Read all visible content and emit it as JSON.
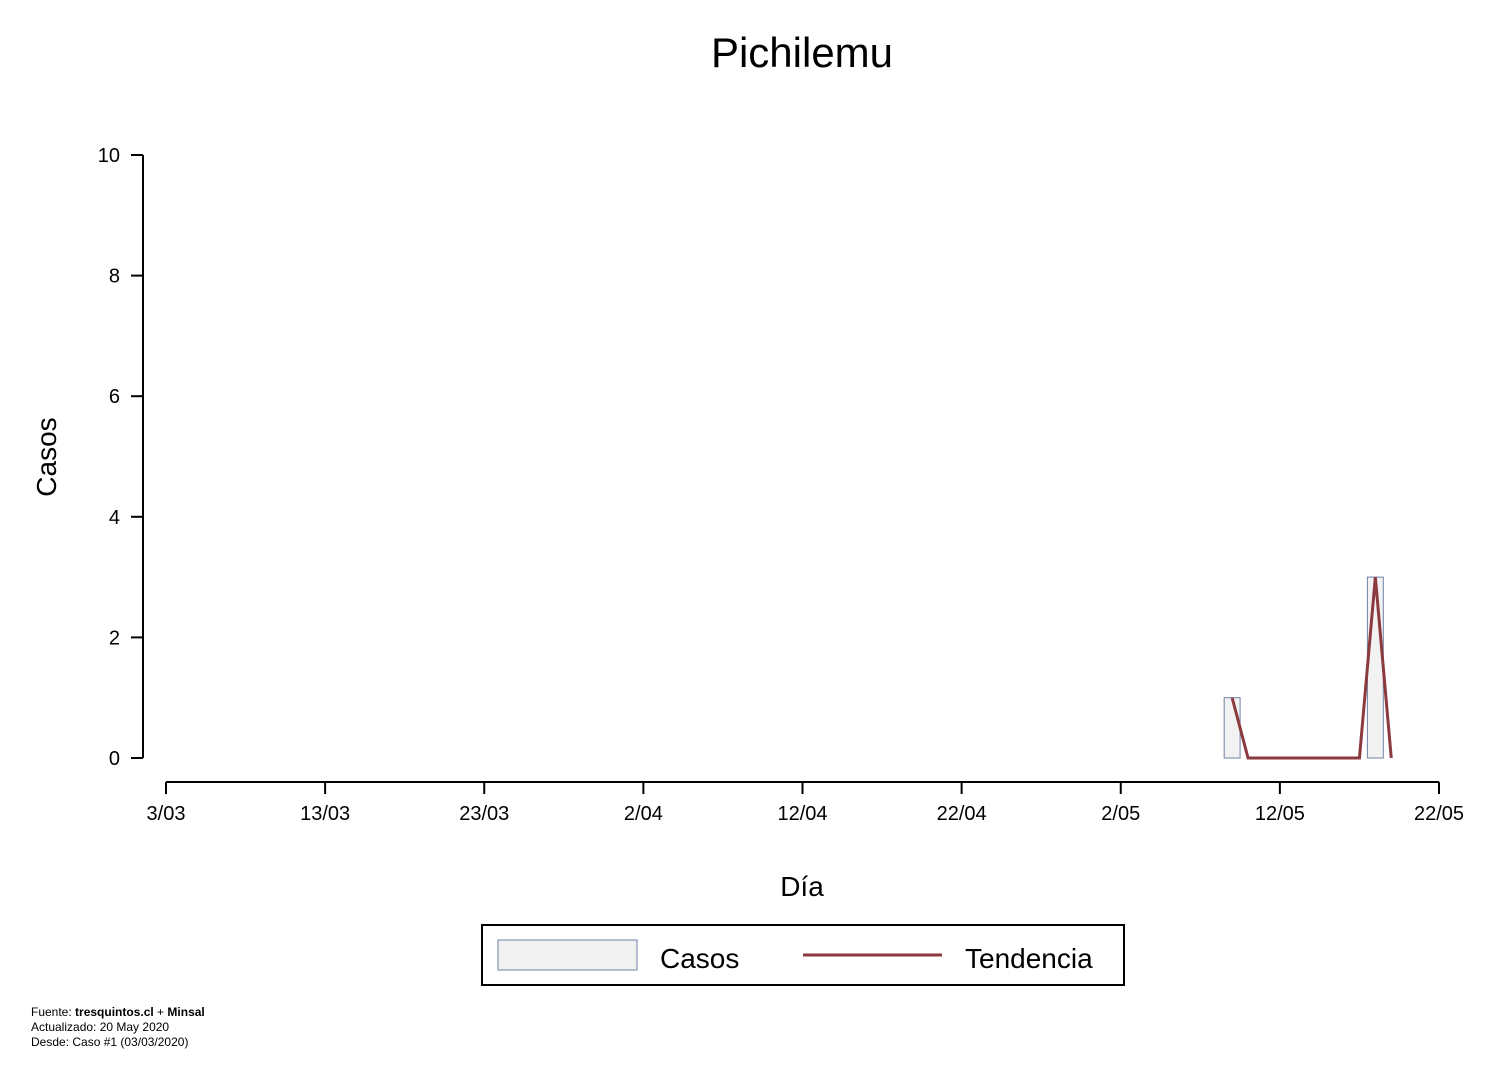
{
  "chart_data": {
    "type": "bar",
    "title": "Pichilemu",
    "xlabel": "Día",
    "ylabel": "Casos",
    "ylim": [
      0,
      10
    ],
    "yticks": [
      0,
      2,
      4,
      6,
      8,
      10
    ],
    "x_ticks": [
      {
        "day": 0,
        "label": "3/03"
      },
      {
        "day": 10,
        "label": "13/03"
      },
      {
        "day": 20,
        "label": "23/03"
      },
      {
        "day": 30,
        "label": "2/04"
      },
      {
        "day": 40,
        "label": "12/04"
      },
      {
        "day": 50,
        "label": "22/04"
      },
      {
        "day": 60,
        "label": "2/05"
      },
      {
        "day": 70,
        "label": "12/05"
      },
      {
        "day": 80,
        "label": "22/05"
      }
    ],
    "xlim_days": [
      0,
      80
    ],
    "series": [
      {
        "name": "Casos",
        "kind": "bar",
        "points": [
          {
            "day": 67,
            "value": 1
          },
          {
            "day": 76,
            "value": 3
          }
        ]
      },
      {
        "name": "Tendencia",
        "kind": "line",
        "points": [
          {
            "day": 67,
            "value": 1
          },
          {
            "day": 68,
            "value": 0
          },
          {
            "day": 69,
            "value": 0
          },
          {
            "day": 70,
            "value": 0
          },
          {
            "day": 71,
            "value": 0
          },
          {
            "day": 72,
            "value": 0
          },
          {
            "day": 73,
            "value": 0
          },
          {
            "day": 74,
            "value": 0
          },
          {
            "day": 75,
            "value": 0
          },
          {
            "day": 76,
            "value": 3
          },
          {
            "day": 77,
            "value": 0
          }
        ]
      }
    ],
    "legend": {
      "position": "bottom-center",
      "entries": [
        "Casos",
        "Tendencia"
      ]
    },
    "colors": {
      "bar_fill": "#f2f2f2",
      "bar_stroke": "#6f82a6",
      "line": "#8b3a3f"
    }
  },
  "footer": {
    "source_prefix": "Fuente: ",
    "source_a": "tresquintos.cl",
    "source_joiner": " + ",
    "source_b": "Minsal",
    "updated": "Actualizado: 20 May 2020",
    "since": "Desde: Caso #1  (03/03/2020)"
  }
}
